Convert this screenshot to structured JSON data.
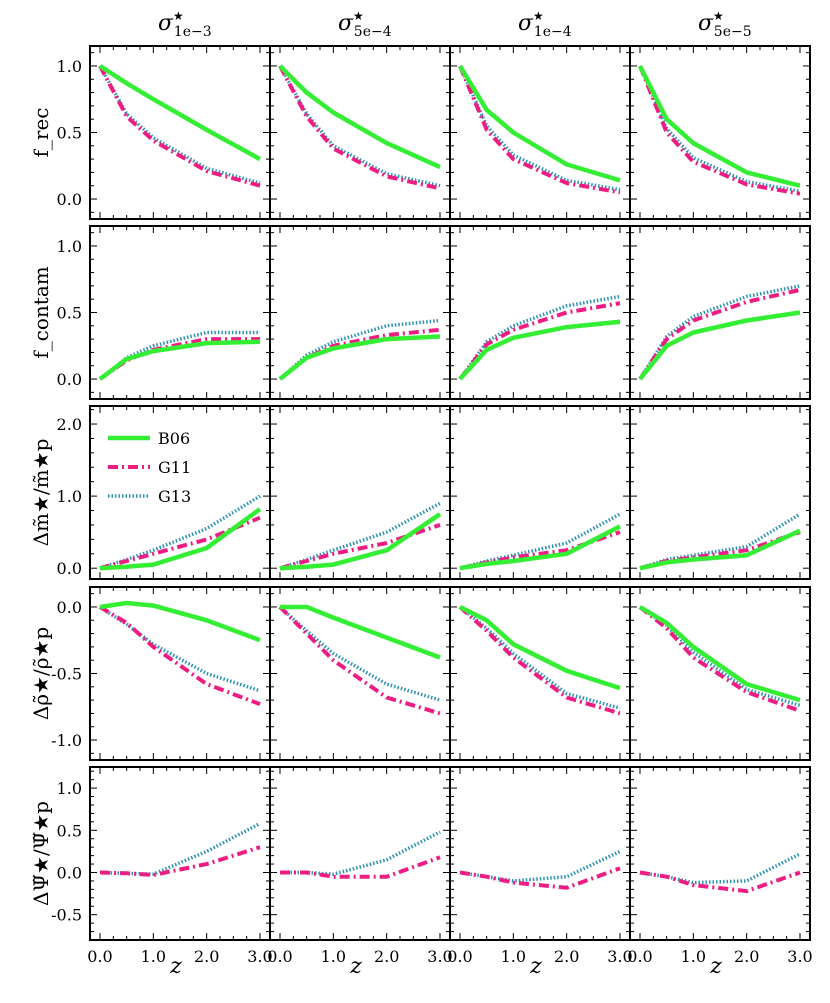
{
  "chart_data": {
    "type": "line",
    "layout": "grid 5 rows x 4 columns, shared axes",
    "x": [
      0.0,
      0.5,
      1.0,
      2.0,
      3.0
    ],
    "xlabel": "z",
    "xticks": [
      "0.0",
      "1.0",
      "2.0",
      "3.0"
    ],
    "xlim": [
      -0.15,
      3.15
    ],
    "columns": [
      {
        "sym": "σ",
        "sup": "★",
        "sub": "1e−3"
      },
      {
        "sym": "σ",
        "sup": "★",
        "sub": "5e−4"
      },
      {
        "sym": "σ",
        "sup": "★",
        "sub": "1e−4"
      },
      {
        "sym": "σ",
        "sup": "★",
        "sub": "5e−5"
      }
    ],
    "legend": {
      "location": "upper-left of row 3, column 1",
      "entries": [
        {
          "name": "B06",
          "color": "#33ee33",
          "style": "solid"
        },
        {
          "name": "G11",
          "color": "#ee1d83",
          "style": "dashdot"
        },
        {
          "name": "G13",
          "color": "#2b92b5",
          "style": "dotted"
        }
      ]
    },
    "rows": [
      {
        "ylabel": "f_rec",
        "ylim": [
          -0.15,
          1.15
        ],
        "yticks": [
          "0.0",
          "0.5",
          "1.0"
        ],
        "ytick_values": [
          0.0,
          0.5,
          1.0
        ],
        "panels": [
          {
            "B06": [
              1.0,
              0.87,
              0.75,
              0.52,
              0.3
            ],
            "G11": [
              1.0,
              0.62,
              0.44,
              0.21,
              0.1
            ],
            "G13": [
              1.0,
              0.64,
              0.46,
              0.23,
              0.12
            ]
          },
          {
            "B06": [
              1.0,
              0.8,
              0.65,
              0.42,
              0.24
            ],
            "G11": [
              1.0,
              0.62,
              0.38,
              0.17,
              0.08
            ],
            "G13": [
              1.0,
              0.64,
              0.4,
              0.19,
              0.1
            ]
          },
          {
            "B06": [
              1.0,
              0.67,
              0.5,
              0.26,
              0.14
            ],
            "G11": [
              1.0,
              0.52,
              0.3,
              0.12,
              0.05
            ],
            "G13": [
              1.0,
              0.55,
              0.33,
              0.14,
              0.07
            ]
          },
          {
            "B06": [
              1.0,
              0.6,
              0.42,
              0.2,
              0.1
            ],
            "G11": [
              1.0,
              0.5,
              0.28,
              0.11,
              0.04
            ],
            "G13": [
              1.0,
              0.53,
              0.31,
              0.13,
              0.06
            ]
          }
        ]
      },
      {
        "ylabel": "f_contam",
        "ylim": [
          -0.15,
          1.15
        ],
        "yticks": [
          "0.0",
          "0.5",
          "1.0"
        ],
        "ytick_values": [
          0.0,
          0.5,
          1.0
        ],
        "panels": [
          {
            "B06": [
              0.0,
              0.15,
              0.21,
              0.27,
              0.28
            ],
            "G11": [
              0.0,
              0.14,
              0.22,
              0.3,
              0.3
            ],
            "G13": [
              0.0,
              0.16,
              0.25,
              0.35,
              0.35
            ]
          },
          {
            "B06": [
              0.0,
              0.16,
              0.23,
              0.3,
              0.32
            ],
            "G11": [
              0.0,
              0.16,
              0.25,
              0.33,
              0.37
            ],
            "G13": [
              0.0,
              0.18,
              0.28,
              0.4,
              0.44
            ]
          },
          {
            "B06": [
              0.0,
              0.22,
              0.31,
              0.39,
              0.43
            ],
            "G11": [
              0.0,
              0.26,
              0.37,
              0.5,
              0.57
            ],
            "G13": [
              0.0,
              0.28,
              0.4,
              0.55,
              0.62
            ]
          },
          {
            "B06": [
              0.0,
              0.25,
              0.35,
              0.44,
              0.5
            ],
            "G11": [
              0.0,
              0.3,
              0.44,
              0.58,
              0.67
            ],
            "G13": [
              0.0,
              0.32,
              0.47,
              0.62,
              0.7
            ]
          }
        ]
      },
      {
        "ylabel": "Δm̃★/m̃★p",
        "ylim": [
          -0.15,
          2.25
        ],
        "yticks": [
          "0.0",
          "1.0",
          "2.0"
        ],
        "ytick_values": [
          0.0,
          1.0,
          2.0
        ],
        "panels": [
          {
            "B06": [
              0.0,
              0.02,
              0.05,
              0.28,
              0.82
            ],
            "G11": [
              0.0,
              0.1,
              0.2,
              0.4,
              0.7
            ],
            "G13": [
              0.0,
              0.12,
              0.25,
              0.55,
              1.0
            ]
          },
          {
            "B06": [
              0.0,
              0.02,
              0.05,
              0.25,
              0.75
            ],
            "G11": [
              0.0,
              0.1,
              0.2,
              0.35,
              0.6
            ],
            "G13": [
              0.0,
              0.12,
              0.25,
              0.5,
              0.9
            ]
          },
          {
            "B06": [
              0.0,
              0.06,
              0.1,
              0.2,
              0.58
            ],
            "G11": [
              0.0,
              0.08,
              0.15,
              0.25,
              0.5
            ],
            "G13": [
              0.0,
              0.1,
              0.18,
              0.35,
              0.75
            ]
          },
          {
            "B06": [
              0.0,
              0.08,
              0.12,
              0.18,
              0.52
            ],
            "G11": [
              0.0,
              0.1,
              0.15,
              0.25,
              0.5
            ],
            "G13": [
              0.0,
              0.12,
              0.18,
              0.3,
              0.75
            ]
          }
        ]
      },
      {
        "ylabel": "Δρ̃★/ρ̃★p",
        "ylim": [
          -1.15,
          0.15
        ],
        "yticks": [
          "0.0",
          "-0.5",
          "-1.0"
        ],
        "ytick_values": [
          0.0,
          -0.5,
          -1.0
        ],
        "panels": [
          {
            "B06": [
              0.0,
              0.03,
              0.01,
              -0.1,
              -0.25
            ],
            "G11": [
              0.0,
              -0.12,
              -0.3,
              -0.58,
              -0.73
            ],
            "G13": [
              0.0,
              -0.13,
              -0.28,
              -0.5,
              -0.63
            ]
          },
          {
            "B06": [
              0.0,
              0.0,
              -0.08,
              -0.23,
              -0.38
            ],
            "G11": [
              0.0,
              -0.2,
              -0.4,
              -0.68,
              -0.8
            ],
            "G13": [
              0.0,
              -0.18,
              -0.35,
              -0.58,
              -0.7
            ]
          },
          {
            "B06": [
              0.0,
              -0.1,
              -0.28,
              -0.48,
              -0.61
            ],
            "G11": [
              0.0,
              -0.18,
              -0.38,
              -0.68,
              -0.8
            ],
            "G13": [
              0.0,
              -0.16,
              -0.35,
              -0.65,
              -0.76
            ]
          },
          {
            "B06": [
              0.0,
              -0.12,
              -0.3,
              -0.58,
              -0.7
            ],
            "G11": [
              0.0,
              -0.16,
              -0.38,
              -0.64,
              -0.78
            ],
            "G13": [
              0.0,
              -0.14,
              -0.34,
              -0.62,
              -0.74
            ]
          }
        ]
      },
      {
        "ylabel": "ΔΨ̃★/Ψ̃★p",
        "ylim": [
          -0.8,
          1.25
        ],
        "yticks": [
          "1.0",
          "0.5",
          "0.0",
          "-0.5"
        ],
        "ytick_values": [
          1.0,
          0.5,
          0.0,
          -0.5
        ],
        "panels": [
          {
            "B06": [],
            "G11": [
              0.0,
              -0.01,
              -0.03,
              0.1,
              0.3
            ],
            "G13": [
              0.0,
              -0.01,
              -0.02,
              0.25,
              0.58
            ]
          },
          {
            "B06": [],
            "G11": [
              0.0,
              0.0,
              -0.05,
              -0.05,
              0.18
            ],
            "G13": [
              0.0,
              0.0,
              -0.02,
              0.15,
              0.48
            ]
          },
          {
            "B06": [],
            "G11": [
              0.0,
              -0.05,
              -0.12,
              -0.18,
              0.05
            ],
            "G13": [
              0.0,
              -0.05,
              -0.1,
              -0.05,
              0.25
            ]
          },
          {
            "B06": [],
            "G11": [
              0.0,
              -0.05,
              -0.15,
              -0.22,
              0.0
            ],
            "G13": [
              0.0,
              -0.05,
              -0.12,
              -0.1,
              0.22
            ]
          }
        ]
      }
    ]
  }
}
